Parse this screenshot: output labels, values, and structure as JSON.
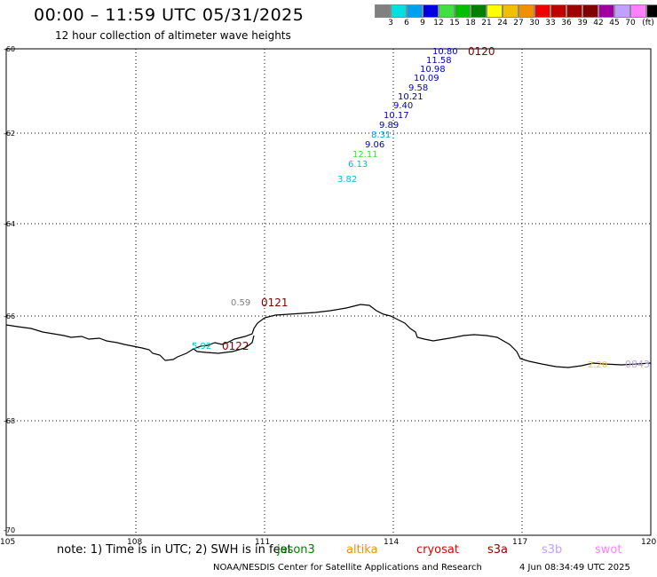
{
  "header": {
    "title": "00:00 – 11:59 UTC 05/31/2025",
    "subtitle": "12 hour collection of altimeter wave heights"
  },
  "scale": {
    "colors": [
      "#808080",
      "#00e0e0",
      "#00a0f0",
      "#0000e0",
      "#40e040",
      "#00c000",
      "#008000",
      "#ffff00",
      "#f0c000",
      "#f09000",
      "#f00000",
      "#c00000",
      "#a00000",
      "#800000",
      "#a000a0",
      "#c0a0ff",
      "#ff80ff",
      "#000000"
    ],
    "labels": [
      "3",
      "6",
      "9",
      "12",
      "15",
      "18",
      "21",
      "24",
      "27",
      "30",
      "33",
      "36",
      "39",
      "42",
      "45",
      "70",
      "(ft)"
    ]
  },
  "axes": {
    "x_ticks": [
      "105",
      "108",
      "111",
      "114",
      "117",
      "120"
    ],
    "y_ticks": [
      "-60",
      "-62",
      "-64",
      "-66",
      "-68",
      "-70"
    ]
  },
  "observations": [
    {
      "value": "10.80",
      "color": "#0000c0"
    },
    {
      "value": "11.58",
      "color": "#0000c0"
    },
    {
      "value": "10.98",
      "color": "#0000c0"
    },
    {
      "value": "10.09",
      "color": "#0000c0"
    },
    {
      "value": "9.58",
      "color": "#0000c0"
    },
    {
      "value": "10.21",
      "color": "#0000c0"
    },
    {
      "value": "9.40",
      "color": "#0000c0"
    },
    {
      "value": "10.17",
      "color": "#0000c0"
    },
    {
      "value": "9.89",
      "color": "#0000c0"
    },
    {
      "value": "8.31",
      "color": "#00a0f0"
    },
    {
      "value": "9.06",
      "color": "#0000c0"
    },
    {
      "value": "12.11",
      "color": "#40e040"
    },
    {
      "value": "6.13",
      "color": "#00c0d0"
    },
    {
      "value": "3.82",
      "color": "#00c0d0"
    },
    {
      "value": "0.59",
      "color": "#808080"
    },
    {
      "value": "5.92",
      "color": "#00c0d0"
    },
    {
      "value": "2.20",
      "color": "#f0d000"
    }
  ],
  "passes": [
    "0120",
    "0121",
    "0122",
    "0843"
  ],
  "footer": {
    "note": "note: 1) Time is in UTC; 2) SWH is in feet",
    "missions": [
      {
        "name": "jason3",
        "color": "#008000"
      },
      {
        "name": "altika",
        "color": "#f09000"
      },
      {
        "name": "cryosat",
        "color": "#e00000"
      },
      {
        "name": "s3a",
        "color": "#900000"
      },
      {
        "name": "s3b",
        "color": "#c0a0ff"
      },
      {
        "name": "swot",
        "color": "#ff80ff"
      }
    ],
    "credit": "NOAA/NESDIS Center for Satellite Applications and Research",
    "timestamp": "4 Jun 08:34:49 UTC 2025"
  }
}
